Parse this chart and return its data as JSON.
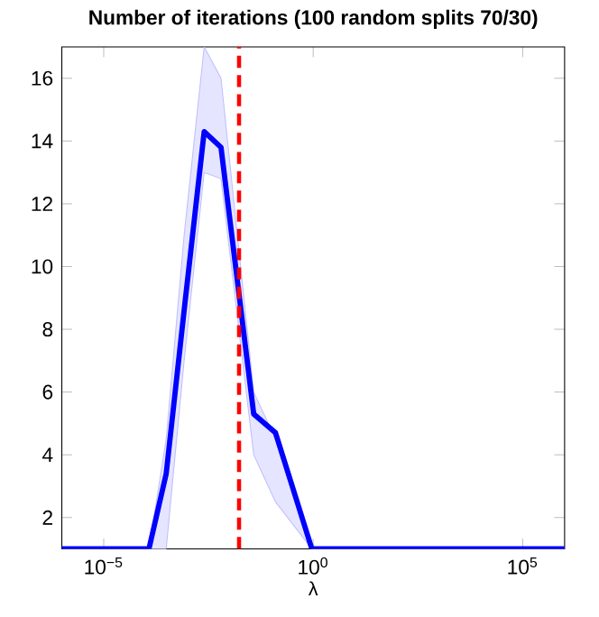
{
  "chart_data": {
    "type": "line",
    "title": "Number of iterations  (100 random splits 70/30)",
    "xlabel": "λ",
    "x": [
      1e-06,
      0.00012,
      0.00031,
      0.00083,
      0.0025,
      0.0063,
      0.038,
      0.126,
      0.93,
      1000000
    ],
    "series": [
      {
        "color": "#0000ff",
        "values": [
          1,
          1,
          3.4,
          8.6,
          14.3,
          13.8,
          5.3,
          4.7,
          1,
          1
        ],
        "lower": [
          1,
          1,
          1,
          7,
          13,
          12.8,
          4,
          2.5,
          1,
          1
        ],
        "upper": [
          1,
          1,
          4.5,
          11,
          17,
          16,
          6,
          4.5,
          1,
          1
        ]
      }
    ],
    "log": "x",
    "xlim": [
      1e-06,
      1000000
    ],
    "ylim": [
      1,
      17
    ],
    "xticks": [
      {
        "value": 1e-05,
        "label": "10$^{−5}$"
      },
      {
        "value": 1,
        "label": "10$^{0}$"
      },
      {
        "value": 100000,
        "label": "10$^{5}$"
      }
    ],
    "yticks": [
      2,
      4,
      6,
      8,
      10,
      12,
      14,
      16
    ],
    "ref_lines": [
      {
        "axis": "x",
        "value": 0.017,
        "color": "#ff0000",
        "line_style": "dashed"
      }
    ],
    "grid": false,
    "marker": "none",
    "line_style": "solid"
  }
}
